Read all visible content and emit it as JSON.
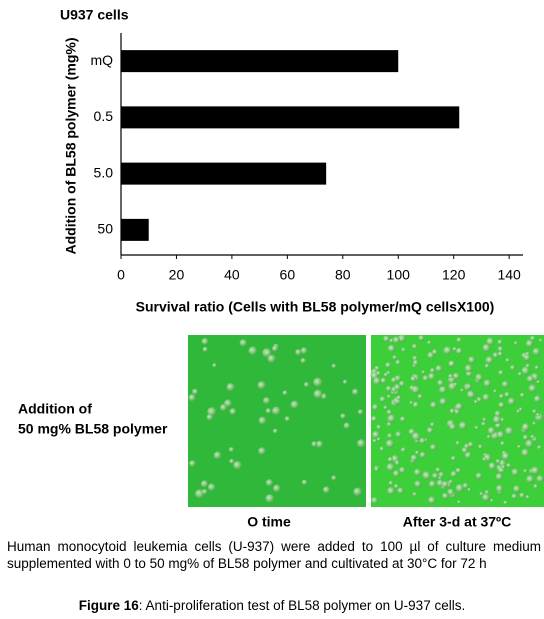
{
  "chart_data": {
    "type": "hbar",
    "title": "U937 cells",
    "xlabel": "Survival ratio (Cells with BL58 polymer/mQ cellsX100)",
    "ylabel": "Addition of BL58 polymer (mg%)",
    "categories": [
      "mQ",
      "0.5",
      "5.0",
      "50"
    ],
    "values": [
      100,
      122,
      74,
      10
    ],
    "color": "#000000",
    "xlim": [
      0,
      145
    ],
    "xticks": [
      0,
      20,
      40,
      60,
      80,
      100,
      120,
      140
    ],
    "grid": false
  },
  "image_panel": {
    "row_label": [
      "Addition of",
      "50 mg% BL58 polymer"
    ],
    "images": [
      {
        "label": "O time"
      },
      {
        "label": "After 3-d at 37ºC"
      }
    ]
  },
  "caption": "Human monocytoid leukemia cells (U-937) were added to 100 µl of culture medium supplemented with 0 to 50 mg% of BL58 polymer and cultivated at 30°C for 72 h",
  "figure": {
    "label": "Figure 16",
    "text": ": Anti-proliferation test of BL58 polymer on U-937 cells."
  }
}
